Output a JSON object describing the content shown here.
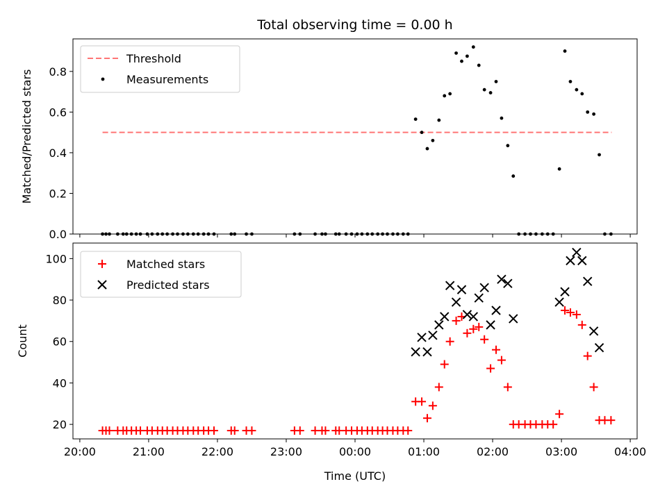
{
  "chart_data": {
    "type": "scatter",
    "title": "Total observing time = 0.00 h",
    "xlabel": "Time (UTC)",
    "x_ticks": [
      "20:00",
      "21:00",
      "22:00",
      "23:00",
      "00:00",
      "01:00",
      "02:00",
      "03:00",
      "04:00"
    ],
    "x_tick_hours": [
      0,
      1,
      2,
      3,
      4,
      5,
      6,
      7,
      8
    ],
    "xlim": [
      -0.1,
      8.1
    ],
    "top": {
      "ylabel": "Matched/Predicted stars",
      "ylim": [
        0,
        0.96
      ],
      "y_ticks": [
        0.0,
        0.2,
        0.4,
        0.6,
        0.8
      ],
      "y_tick_labels": [
        "0.0",
        "0.2",
        "0.4",
        "0.6",
        "0.8"
      ],
      "legend": [
        "Threshold",
        "Measurements"
      ],
      "threshold": {
        "value": 0.5,
        "x_range": [
          0.33,
          7.73
        ],
        "color": "#ff7575"
      },
      "measurements": [
        [
          0.33,
          0
        ],
        [
          0.38,
          0
        ],
        [
          0.43,
          0
        ],
        [
          0.55,
          0
        ],
        [
          0.63,
          0
        ],
        [
          0.68,
          0
        ],
        [
          0.75,
          0
        ],
        [
          0.82,
          0
        ],
        [
          0.88,
          0
        ],
        [
          0.98,
          0
        ],
        [
          1.05,
          0
        ],
        [
          1.13,
          0
        ],
        [
          1.2,
          0
        ],
        [
          1.27,
          0
        ],
        [
          1.35,
          0
        ],
        [
          1.42,
          0
        ],
        [
          1.5,
          0
        ],
        [
          1.57,
          0
        ],
        [
          1.65,
          0
        ],
        [
          1.72,
          0
        ],
        [
          1.8,
          0
        ],
        [
          1.87,
          0
        ],
        [
          1.95,
          0
        ],
        [
          2.2,
          0
        ],
        [
          2.25,
          0
        ],
        [
          2.42,
          0
        ],
        [
          2.5,
          0
        ],
        [
          3.12,
          0
        ],
        [
          3.2,
          0
        ],
        [
          3.42,
          0
        ],
        [
          3.52,
          0
        ],
        [
          3.57,
          0
        ],
        [
          3.72,
          0
        ],
        [
          3.77,
          0
        ],
        [
          3.87,
          0
        ],
        [
          3.95,
          0
        ],
        [
          4.03,
          0
        ],
        [
          4.1,
          0
        ],
        [
          4.18,
          0
        ],
        [
          4.25,
          0
        ],
        [
          4.33,
          0
        ],
        [
          4.4,
          0
        ],
        [
          4.47,
          0
        ],
        [
          4.55,
          0
        ],
        [
          4.62,
          0
        ],
        [
          4.7,
          0
        ],
        [
          4.77,
          0
        ],
        [
          4.88,
          0.565
        ],
        [
          4.97,
          0.5
        ],
        [
          5.05,
          0.42
        ],
        [
          5.13,
          0.46
        ],
        [
          5.22,
          0.56
        ],
        [
          5.3,
          0.68
        ],
        [
          5.38,
          0.69
        ],
        [
          5.47,
          0.89
        ],
        [
          5.55,
          0.85
        ],
        [
          5.63,
          0.875
        ],
        [
          5.72,
          0.92
        ],
        [
          5.8,
          0.83
        ],
        [
          5.88,
          0.71
        ],
        [
          5.97,
          0.695
        ],
        [
          6.05,
          0.75
        ],
        [
          6.13,
          0.57
        ],
        [
          6.22,
          0.435
        ],
        [
          6.3,
          0.285
        ],
        [
          6.38,
          0
        ],
        [
          6.47,
          0
        ],
        [
          6.55,
          0
        ],
        [
          6.63,
          0
        ],
        [
          6.72,
          0
        ],
        [
          6.8,
          0
        ],
        [
          6.88,
          0
        ],
        [
          6.97,
          0.32
        ],
        [
          7.05,
          0.9
        ],
        [
          7.13,
          0.75
        ],
        [
          7.22,
          0.71
        ],
        [
          7.3,
          0.69
        ],
        [
          7.38,
          0.6
        ],
        [
          7.47,
          0.59
        ],
        [
          7.55,
          0.39
        ],
        [
          7.63,
          0
        ],
        [
          7.72,
          0
        ]
      ]
    },
    "bottom": {
      "ylabel": "Count",
      "ylim": [
        13,
        107.5
      ],
      "y_ticks": [
        20,
        40,
        60,
        80,
        100
      ],
      "y_tick_labels": [
        "20",
        "40",
        "60",
        "80",
        "100"
      ],
      "legend": [
        "Matched stars",
        "Predicted stars"
      ],
      "matched_color": "#ff0000",
      "predicted_color": "#000000",
      "matched": [
        [
          0.33,
          17
        ],
        [
          0.38,
          17
        ],
        [
          0.43,
          17
        ],
        [
          0.55,
          17
        ],
        [
          0.63,
          17
        ],
        [
          0.68,
          17
        ],
        [
          0.75,
          17
        ],
        [
          0.82,
          17
        ],
        [
          0.88,
          17
        ],
        [
          0.98,
          17
        ],
        [
          1.05,
          17
        ],
        [
          1.13,
          17
        ],
        [
          1.2,
          17
        ],
        [
          1.27,
          17
        ],
        [
          1.35,
          17
        ],
        [
          1.42,
          17
        ],
        [
          1.5,
          17
        ],
        [
          1.57,
          17
        ],
        [
          1.65,
          17
        ],
        [
          1.72,
          17
        ],
        [
          1.8,
          17
        ],
        [
          1.87,
          17
        ],
        [
          1.95,
          17
        ],
        [
          2.2,
          17
        ],
        [
          2.25,
          17
        ],
        [
          2.42,
          17
        ],
        [
          2.5,
          17
        ],
        [
          3.12,
          17
        ],
        [
          3.2,
          17
        ],
        [
          3.42,
          17
        ],
        [
          3.52,
          17
        ],
        [
          3.57,
          17
        ],
        [
          3.72,
          17
        ],
        [
          3.77,
          17
        ],
        [
          3.87,
          17
        ],
        [
          3.95,
          17
        ],
        [
          4.03,
          17
        ],
        [
          4.1,
          17
        ],
        [
          4.18,
          17
        ],
        [
          4.25,
          17
        ],
        [
          4.33,
          17
        ],
        [
          4.4,
          17
        ],
        [
          4.47,
          17
        ],
        [
          4.55,
          17
        ],
        [
          4.62,
          17
        ],
        [
          4.7,
          17
        ],
        [
          4.77,
          17
        ],
        [
          4.88,
          31
        ],
        [
          4.97,
          31
        ],
        [
          5.05,
          23
        ],
        [
          5.13,
          29
        ],
        [
          5.22,
          38
        ],
        [
          5.3,
          49
        ],
        [
          5.38,
          60
        ],
        [
          5.47,
          70
        ],
        [
          5.55,
          72
        ],
        [
          5.63,
          64
        ],
        [
          5.72,
          66
        ],
        [
          5.8,
          67
        ],
        [
          5.88,
          61
        ],
        [
          5.97,
          47
        ],
        [
          6.05,
          56
        ],
        [
          6.13,
          51
        ],
        [
          6.22,
          38
        ],
        [
          6.3,
          20
        ],
        [
          6.38,
          20
        ],
        [
          6.47,
          20
        ],
        [
          6.55,
          20
        ],
        [
          6.63,
          20
        ],
        [
          6.72,
          20
        ],
        [
          6.8,
          20
        ],
        [
          6.88,
          20
        ],
        [
          6.97,
          25
        ],
        [
          7.05,
          75
        ],
        [
          7.13,
          74
        ],
        [
          7.22,
          73
        ],
        [
          7.3,
          68
        ],
        [
          7.38,
          53
        ],
        [
          7.47,
          38
        ],
        [
          7.55,
          22
        ],
        [
          7.63,
          22
        ],
        [
          7.72,
          22
        ]
      ],
      "predicted": [
        [
          4.88,
          55
        ],
        [
          4.97,
          62
        ],
        [
          5.05,
          55
        ],
        [
          5.13,
          63
        ],
        [
          5.22,
          68
        ],
        [
          5.3,
          72
        ],
        [
          5.38,
          87
        ],
        [
          5.47,
          79
        ],
        [
          5.55,
          85
        ],
        [
          5.63,
          73
        ],
        [
          5.72,
          72
        ],
        [
          5.8,
          81
        ],
        [
          5.88,
          86
        ],
        [
          5.97,
          68
        ],
        [
          6.05,
          75
        ],
        [
          6.13,
          90
        ],
        [
          6.22,
          88
        ],
        [
          6.3,
          71
        ],
        [
          6.97,
          79
        ],
        [
          7.05,
          84
        ],
        [
          7.13,
          99
        ],
        [
          7.22,
          103
        ],
        [
          7.3,
          99
        ],
        [
          7.38,
          89
        ],
        [
          7.47,
          65
        ],
        [
          7.55,
          57
        ]
      ]
    }
  }
}
